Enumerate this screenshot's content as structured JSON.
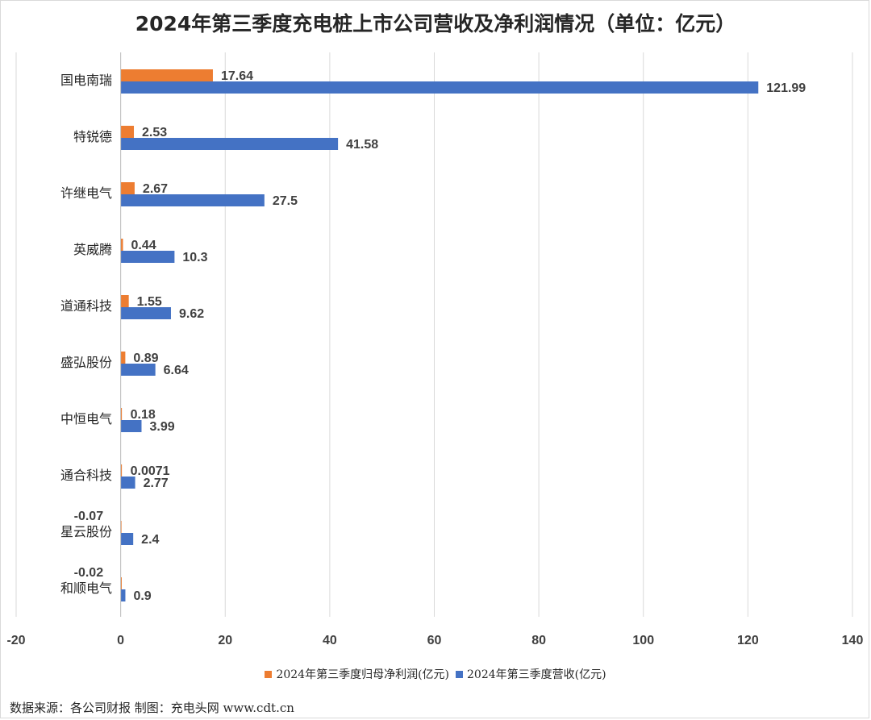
{
  "chart_data": {
    "type": "bar",
    "orientation": "horizontal",
    "title": "2024年第三季度充电桩上市公司营收及净利润情况（单位：亿元）",
    "categories": [
      "国电南瑞",
      "特锐德",
      "许继电气",
      "英威腾",
      "道通科技",
      "盛弘股份",
      "中恒电气",
      "通合科技",
      "星云股份",
      "和顺电气"
    ],
    "series": [
      {
        "name": "2024年第三季度归母净利润(亿元)",
        "color": "#ED7D31",
        "values": [
          17.64,
          2.53,
          2.67,
          0.44,
          1.55,
          0.89,
          0.18,
          0.0071,
          -0.07,
          -0.02
        ],
        "labels": [
          "17.64",
          "2.53",
          "2.67",
          "0.44",
          "1.55",
          "0.89",
          "0.18",
          "0.0071",
          "-0.07",
          "-0.02"
        ]
      },
      {
        "name": "2024年第三季度营收(亿元)",
        "color": "#4472C4",
        "values": [
          121.99,
          41.58,
          27.5,
          10.3,
          9.62,
          6.64,
          3.99,
          2.77,
          2.4,
          0.9
        ],
        "labels": [
          "121.99",
          "41.58",
          "27.5",
          "10.3",
          "9.62",
          "6.64",
          "3.99",
          "2.77",
          "2.4",
          "0.9"
        ]
      }
    ],
    "xlim": [
      -20,
      140
    ],
    "xticks": [
      -20,
      0,
      20,
      40,
      60,
      80,
      100,
      120,
      140
    ],
    "grid": true,
    "legend_position": "bottom"
  },
  "footer": {
    "source_text": "数据来源：各公司财报  制图：充电头网 www.cdt.cn"
  }
}
